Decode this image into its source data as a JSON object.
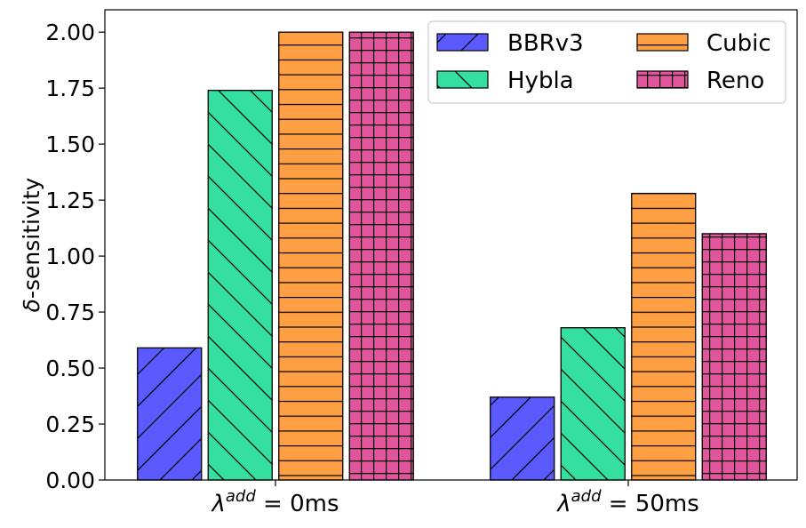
{
  "chart_data": {
    "type": "bar",
    "title": "",
    "xlabel": "",
    "ylabel": "δ-sensitivity",
    "ylim": [
      0,
      2.1
    ],
    "yticks": [
      "0.00",
      "0.25",
      "0.50",
      "0.75",
      "1.00",
      "1.25",
      "1.50",
      "1.75",
      "2.00"
    ],
    "categories": [
      {
        "prefix": "λ",
        "sup": "add",
        "suffix": " = 0ms"
      },
      {
        "prefix": "λ",
        "sup": "add",
        "suffix": " = 50ms"
      }
    ],
    "series": [
      {
        "name": "BBRv3",
        "values": [
          0.59,
          0.37
        ],
        "color": "#5a5aff",
        "hatch": "diag-fwd"
      },
      {
        "name": "Hybla",
        "values": [
          1.74,
          0.68
        ],
        "color": "#34dfa0",
        "hatch": "diag-back"
      },
      {
        "name": "Cubic",
        "values": [
          2.0,
          1.28
        ],
        "color": "#ff9f43",
        "hatch": "horizontal"
      },
      {
        "name": "Reno",
        "values": [
          2.0,
          1.1
        ],
        "color": "#e0559c",
        "hatch": "grid"
      }
    ],
    "legend": {
      "placement": "top-right",
      "columns": 2
    },
    "grid": false
  }
}
